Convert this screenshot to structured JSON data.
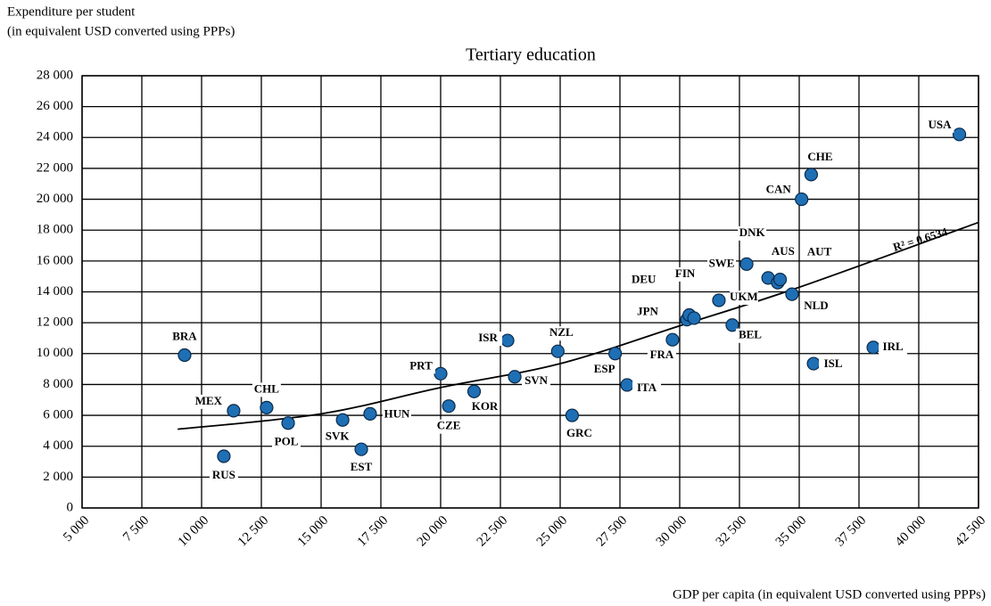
{
  "chart_data": {
    "type": "scatter",
    "title": "Tertiary education",
    "y_label": [
      "Expenditure per student",
      "(in equivalent USD converted using PPPs)"
    ],
    "x_label": "GDP per capita (in equivalent USD converted using PPPs)",
    "annotation": "R² = 0.6534",
    "color": "#1f6fb5",
    "grid": true,
    "labels": [
      "BRA",
      "RUS",
      "MEX",
      "CHL",
      "POL",
      "SVK",
      "EST",
      "HUN",
      "PRT",
      "CZE",
      "KOR",
      "ISR",
      "SVN",
      "NZL",
      "GRC",
      "ESP",
      "ITA",
      "FRA",
      "JPN",
      "DEU",
      "FIN",
      "UKM",
      "BEL",
      "SWE",
      "DNK",
      "AUS",
      "AUT",
      "NLD",
      "CAN",
      "CHE",
      "ISL",
      "IRL",
      "USA"
    ],
    "x": [
      9290,
      10930,
      11340,
      12720,
      13620,
      15900,
      16680,
      17050,
      20000,
      20340,
      21400,
      22800,
      23100,
      24900,
      25500,
      27300,
      27800,
      29700,
      30300,
      30400,
      30600,
      31640,
      32200,
      32800,
      33700,
      34100,
      34200,
      34700,
      35100,
      35500,
      35600,
      38100,
      41700
    ],
    "y": [
      9900,
      3350,
      6300,
      6500,
      5500,
      5700,
      3800,
      6100,
      8700,
      6600,
      7550,
      10850,
      8500,
      10150,
      6000,
      10000,
      7970,
      10900,
      12200,
      12500,
      12300,
      13450,
      11850,
      15800,
      14900,
      14600,
      14800,
      13850,
      20000,
      21600,
      9350,
      10400,
      24200
    ],
    "trendline": {
      "x": [
        9000,
        15000,
        20000,
        25000,
        30000,
        35000,
        42500
      ],
      "y": [
        5100,
        6100,
        7800,
        9350,
        11800,
        14300,
        18500
      ]
    },
    "xlim": [
      5000,
      42500
    ],
    "ylim": [
      0,
      28000
    ],
    "xticks": [
      {
        "value": 5000,
        "label": "5 000"
      },
      {
        "value": 7500,
        "label": "7 500"
      },
      {
        "value": 10000,
        "label": "10 000"
      },
      {
        "value": 12500,
        "label": "12 500"
      },
      {
        "value": 15000,
        "label": "15 000"
      },
      {
        "value": 17500,
        "label": "17 500"
      },
      {
        "value": 20000,
        "label": "20 000"
      },
      {
        "value": 22500,
        "label": "22 500"
      },
      {
        "value": 25000,
        "label": "25 000"
      },
      {
        "value": 27500,
        "label": "27 500"
      },
      {
        "value": 30000,
        "label": "30 000"
      },
      {
        "value": 32500,
        "label": "32 500"
      },
      {
        "value": 35000,
        "label": "35 000"
      },
      {
        "value": 37500,
        "label": "37 500"
      },
      {
        "value": 40000,
        "label": "40 000"
      },
      {
        "value": 42500,
        "label": "42 500"
      }
    ],
    "yticks": [
      0,
      {
        "value": 2000,
        "label": "2 000"
      },
      {
        "value": 4000,
        "label": "4 000"
      },
      {
        "value": 6000,
        "label": "6 000"
      },
      {
        "value": 8000,
        "label": "8 000"
      },
      {
        "value": 10000,
        "label": "10 000"
      },
      {
        "value": 12000,
        "label": "12 000"
      },
      {
        "value": 14000,
        "label": "14 000"
      },
      {
        "value": 16000,
        "label": "16 000"
      },
      {
        "value": 18000,
        "label": "18 000"
      },
      {
        "value": 20000,
        "label": "20 000"
      },
      {
        "value": 22000,
        "label": "22 000"
      },
      {
        "value": 24000,
        "label": "24 000"
      },
      {
        "value": 26000,
        "label": "26 000"
      },
      {
        "value": 28000,
        "label": "28 000"
      }
    ]
  }
}
